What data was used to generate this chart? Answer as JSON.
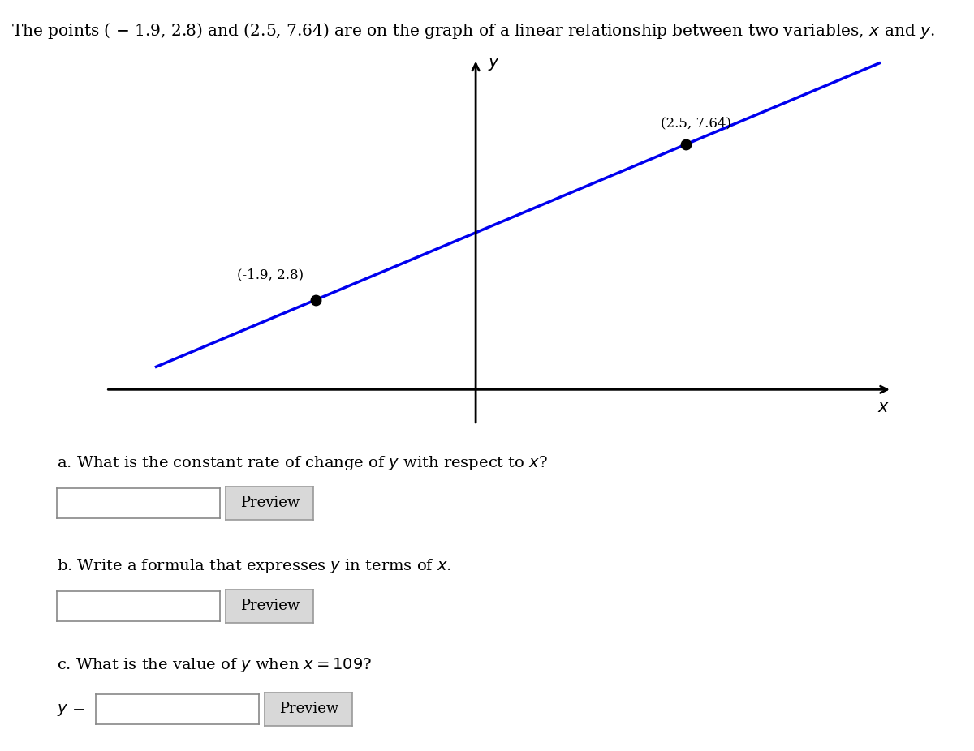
{
  "title": "The points ( – 1.9, 2.8) and (2.5, 7.64) are on the graph of a linear relationship between two variables, x and y.",
  "point1": [
    -1.9,
    2.8
  ],
  "point2": [
    2.5,
    7.64
  ],
  "line_color": "#0000ee",
  "point_color": "#000000",
  "background_color": "#ffffff",
  "question_a": "a. What is the constant rate of change of y with respect to x?",
  "question_b": "b. Write a formula that expresses y in terms of x.",
  "question_c": "c. What is the value of y when x = 109?",
  "question_c_math": "c. What is the value of $y$ when $x = 109$?",
  "question_c_prefix": "$y$ =",
  "preview_label": "Preview",
  "title_fontsize": 14.5,
  "label_fontsize": 14,
  "bottom_line_color": "#2222cc",
  "xlim": [
    -4.5,
    5.0
  ],
  "ylim": [
    -1.2,
    10.5
  ],
  "x_line_start": -3.8,
  "x_line_end": 4.8
}
